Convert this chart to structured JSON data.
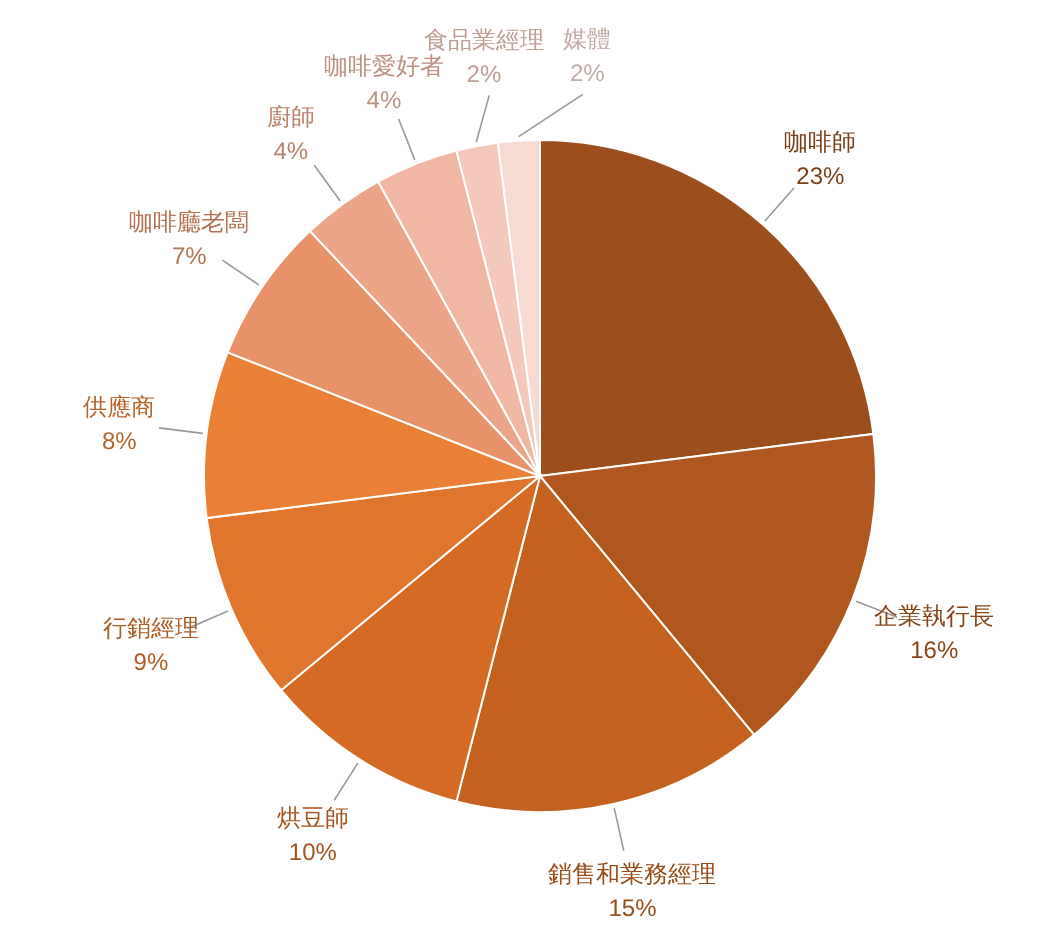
{
  "chart_data": {
    "type": "pie",
    "categories": [
      "咖啡師",
      "企業執行長",
      "銷售和業務經理",
      "烘豆師",
      "行銷經理",
      "供應商",
      "咖啡廳老闆",
      "廚師",
      "咖啡愛好者",
      "食品業經理",
      "媒體"
    ],
    "values": [
      23,
      16,
      15,
      10,
      9,
      8,
      7,
      4,
      4,
      2,
      2
    ],
    "value_labels": [
      "23%",
      "16%",
      "15%",
      "10%",
      "9%",
      "8%",
      "7%",
      "4%",
      "4%",
      "2%",
      "2%"
    ],
    "colors": [
      "#9c4f1c",
      "#b0571f",
      "#c4611f",
      "#d46a24",
      "#e0752d",
      "#ea8035",
      "#e8926a",
      "#eca587",
      "#f0b8a3",
      "#f4c9bc",
      "#f7dad2"
    ]
  }
}
